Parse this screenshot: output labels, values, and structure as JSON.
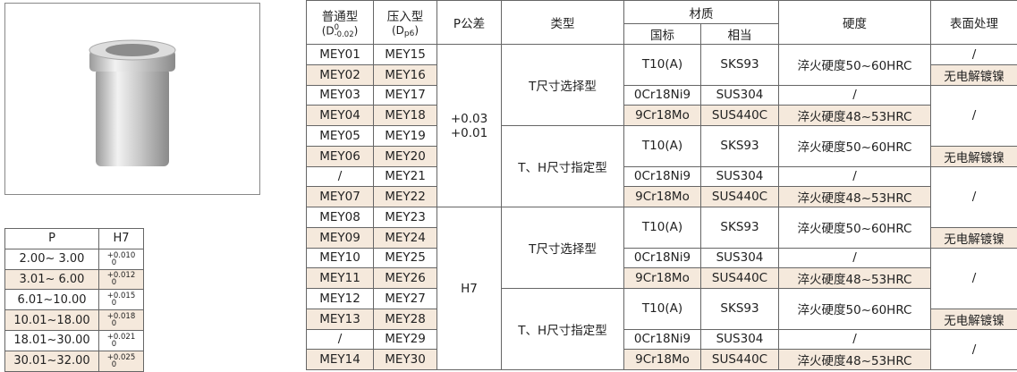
{
  "tolerance_table": {
    "header": [
      "P",
      "H7"
    ],
    "rows": [
      {
        "range": "2.00~ 3.00",
        "upper": "+0.010",
        "lower": "0"
      },
      {
        "range": "3.01~ 6.00",
        "upper": "+0.012",
        "lower": "0"
      },
      {
        "range": "6.01~10.00",
        "upper": "+0.015",
        "lower": "0"
      },
      {
        "range": "10.01~18.00",
        "upper": "+0.018",
        "lower": "0"
      },
      {
        "range": "18.01~30.00",
        "upper": "+0.021",
        "lower": "0"
      },
      {
        "range": "30.01~32.00",
        "upper": "+0.025",
        "lower": "0"
      }
    ]
  },
  "main_table": {
    "header": {
      "normal": {
        "title": "普通型",
        "prefix": "(D",
        "upper": "0",
        "lower": "-0.02",
        "suffix": ")"
      },
      "press": {
        "title": "压入型",
        "prefix": "(D",
        "sub": "p6",
        "suffix": ")"
      },
      "tolerance": "P公差",
      "type": "类型",
      "material": "材质",
      "standard": "国标",
      "equivalent": "相当",
      "hardness": "硬度",
      "surface": "表面处理"
    },
    "rows": [
      {
        "normal": "MEY01",
        "press": "MEY15"
      },
      {
        "normal": "MEY02",
        "press": "MEY16"
      },
      {
        "normal": "MEY03",
        "press": "MEY17"
      },
      {
        "normal": "MEY04",
        "press": "MEY18"
      },
      {
        "normal": "MEY05",
        "press": "MEY19"
      },
      {
        "normal": "MEY06",
        "press": "MEY20"
      },
      {
        "normal": "/",
        "press": "MEY21"
      },
      {
        "normal": "MEY07",
        "press": "MEY22"
      },
      {
        "normal": "MEY08",
        "press": "MEY23"
      },
      {
        "normal": "MEY09",
        "press": "MEY24"
      },
      {
        "normal": "MEY10",
        "press": "MEY25"
      },
      {
        "normal": "MEY11",
        "press": "MEY26"
      },
      {
        "normal": "MEY12",
        "press": "MEY27"
      },
      {
        "normal": "MEY13",
        "press": "MEY28"
      },
      {
        "normal": "/",
        "press": "MEY29"
      },
      {
        "normal": "MEY14",
        "press": "MEY30"
      }
    ],
    "tolerance_groups": [
      {
        "lines": [
          "+0.03",
          "+0.01"
        ]
      },
      {
        "lines": [
          "H7"
        ]
      }
    ],
    "type_groups": [
      {
        "name": "T尺寸选择型",
        "materials": [
          {
            "standard": "T10(A)",
            "equivalent": "SKS93",
            "hardness": "淬火硬度50~60HRC"
          },
          {
            "standard": "0Cr18Ni9",
            "equivalent": "SUS304",
            "hardness": "/"
          },
          {
            "standard": "9Cr18Mo",
            "equivalent": "SUS440C",
            "hardness": "淬火硬度48~53HRC"
          }
        ]
      },
      {
        "name": "T、H尺寸指定型",
        "materials": [
          {
            "standard": "T10(A)",
            "equivalent": "SKS93",
            "hardness": "淬火硬度50~60HRC"
          },
          {
            "standard": "0Cr18Ni9",
            "equivalent": "SUS304",
            "hardness": "/"
          },
          {
            "standard": "9Cr18Mo",
            "equivalent": "SUS440C",
            "hardness": "淬火硬度48~53HRC"
          }
        ]
      },
      {
        "name": "T尺寸选择型",
        "materials": [
          {
            "standard": "T10(A)",
            "equivalent": "SKS93",
            "hardness": "淬火硬度50~60HRC"
          },
          {
            "standard": "0Cr18Ni9",
            "equivalent": "SUS304",
            "hardness": "/"
          },
          {
            "standard": "9Cr18Mo",
            "equivalent": "SUS440C",
            "hardness": "淬火硬度48~53HRC"
          }
        ]
      },
      {
        "name": "T、H尺寸指定型",
        "materials": [
          {
            "standard": "T10(A)",
            "equivalent": "SKS93",
            "hardness": "淬火硬度50~60HRC"
          },
          {
            "standard": "0Cr18Ni9",
            "equivalent": "SUS304",
            "hardness": "/"
          },
          {
            "standard": "9Cr18Mo",
            "equivalent": "SUS440C",
            "hardness": "淬火硬度48~53HRC"
          }
        ]
      }
    ],
    "surface": [
      "/",
      "无电解镀镍",
      "/",
      "无电解镀镍",
      "/",
      "无电解镀镍",
      "/",
      "无电解镀镍",
      "/"
    ]
  }
}
